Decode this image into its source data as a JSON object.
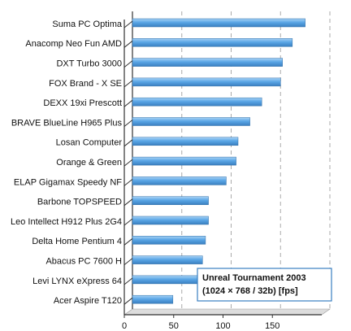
{
  "chart_data": {
    "type": "bar",
    "orientation": "horizontal",
    "title": "Unreal Tournament 2003",
    "subtitle": "(1024 × 768 / 32b) [fps]",
    "categories": [
      "Suma PC Optima",
      "Anacomp Neo Fun AMD",
      "DXT Turbo 3000",
      "FOX Brand - X SE",
      "DEXX 19xi Prescott",
      "BRAVE BlueLine H965 Plus",
      "Losan Computer",
      "Orange & Green",
      "ELAP Gigamax Speedy NF",
      "Barbone TOPSPEED",
      "Leo Intellect H912 Plus 2G4",
      "Delta Home Pentium 4",
      "Abacus PC 7600 H",
      "Levi LYNX eXpress 64",
      "Acer Aspire T120"
    ],
    "values": [
      175,
      162,
      152,
      150,
      131,
      119,
      107,
      105,
      95,
      77,
      77,
      74,
      71,
      72,
      41
    ],
    "color": "#5aa6e6",
    "xlim": [
      0,
      200
    ],
    "xticks": [
      0,
      50,
      100,
      150
    ],
    "grid": true
  }
}
